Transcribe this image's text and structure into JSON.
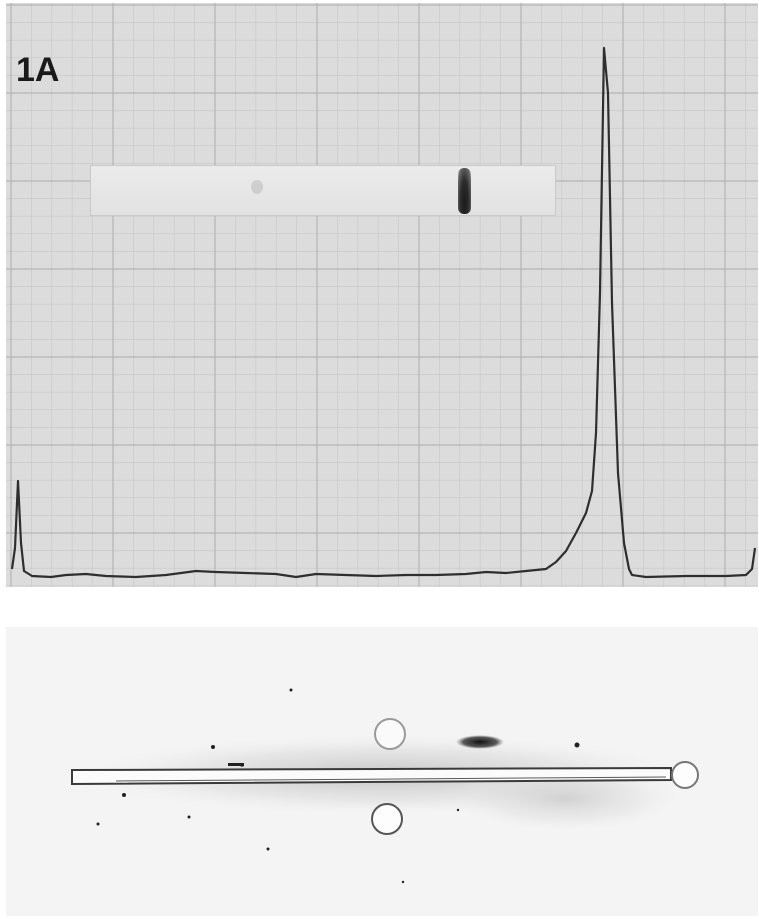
{
  "figure": {
    "panel_label": "1A",
    "colors": {
      "paper": "#dcdcdc",
      "grid": "#bdbdbd",
      "trace": "#2e2e2e",
      "gel_band": "#1b1b1b",
      "plate": "#f4f4f4"
    }
  }
}
